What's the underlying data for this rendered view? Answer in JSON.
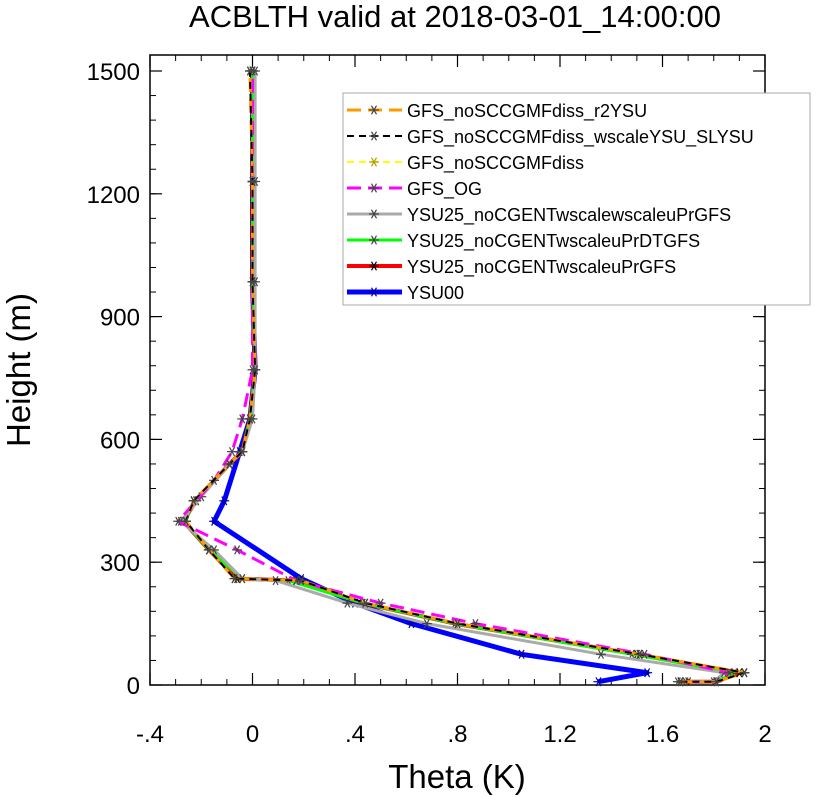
{
  "chart_data": {
    "type": "line",
    "title": "ACBLTH valid at 2018-03-01_14:00:00",
    "xlabel": "Theta (K)",
    "ylabel": "Height (m)",
    "xlim": [
      -0.4,
      2.0
    ],
    "ylim": [
      0,
      1500
    ],
    "x_ticks": [
      -0.4,
      0,
      0.4,
      0.8,
      1.2,
      1.6,
      2.0
    ],
    "x_tick_labels": [
      "-.4",
      "0",
      ".4",
      ".8",
      "1.2",
      "1.6",
      "2"
    ],
    "y_ticks": [
      0,
      300,
      600,
      900,
      1200,
      1500
    ],
    "y_tick_labels": [
      "0",
      "300",
      "600",
      "900",
      "1200",
      "1500"
    ],
    "legend_position": "top-right",
    "grid": false,
    "series": [
      {
        "name": "GFS_noSCCGMFdiss_r2YSU",
        "color": "#ff9900",
        "dash": "long",
        "width": 3,
        "points": [
          [
            1.67,
            8
          ],
          [
            1.81,
            8
          ],
          [
            1.92,
            30
          ],
          [
            1.51,
            75
          ],
          [
            0.8,
            150
          ],
          [
            0.44,
            200
          ],
          [
            0.19,
            255
          ],
          [
            -0.07,
            260
          ],
          [
            -0.17,
            330
          ],
          [
            -0.26,
            400
          ],
          [
            -0.23,
            450
          ],
          [
            -0.09,
            540
          ],
          [
            -0.04,
            570
          ],
          [
            -0.01,
            650
          ],
          [
            0.01,
            770
          ],
          [
            0.0,
            985
          ],
          [
            0.0,
            1230
          ],
          [
            -0.01,
            1500
          ]
        ]
      },
      {
        "name": "GFS_noSCCGMFdiss_wscaleYSU_SLYSU",
        "color": "#000000",
        "dash": "short",
        "width": 2,
        "points": [
          [
            1.67,
            8
          ],
          [
            1.81,
            8
          ],
          [
            1.92,
            30
          ],
          [
            1.51,
            75
          ],
          [
            0.8,
            150
          ],
          [
            0.44,
            200
          ],
          [
            0.19,
            255
          ],
          [
            -0.07,
            260
          ],
          [
            -0.17,
            330
          ],
          [
            -0.26,
            400
          ],
          [
            -0.23,
            450
          ],
          [
            -0.09,
            540
          ],
          [
            -0.04,
            570
          ],
          [
            -0.01,
            650
          ],
          [
            0.01,
            770
          ],
          [
            0.0,
            985
          ],
          [
            0.0,
            1230
          ],
          [
            -0.01,
            1500
          ]
        ]
      },
      {
        "name": "GFS_noSCCGMFdiss",
        "color": "#ffff00",
        "dash": "short",
        "width": 2,
        "points": [
          [
            1.67,
            8
          ],
          [
            1.81,
            8
          ],
          [
            1.92,
            30
          ],
          [
            1.51,
            75
          ],
          [
            0.8,
            150
          ],
          [
            0.44,
            200
          ],
          [
            0.19,
            255
          ],
          [
            -0.07,
            260
          ],
          [
            -0.17,
            330
          ],
          [
            -0.26,
            400
          ],
          [
            -0.23,
            450
          ],
          [
            -0.09,
            540
          ],
          [
            -0.04,
            570
          ],
          [
            -0.01,
            650
          ],
          [
            0.01,
            770
          ],
          [
            0.0,
            985
          ],
          [
            0.0,
            1230
          ],
          [
            -0.01,
            1500
          ]
        ]
      },
      {
        "name": "GFS_OG",
        "color": "#ff00ff",
        "dash": "long",
        "width": 3,
        "points": [
          [
            1.69,
            8
          ],
          [
            1.81,
            8
          ],
          [
            1.86,
            30
          ],
          [
            1.53,
            75
          ],
          [
            0.87,
            150
          ],
          [
            0.5,
            200
          ],
          [
            0.17,
            255
          ],
          [
            -0.06,
            330
          ],
          [
            -0.29,
            400
          ],
          [
            -0.15,
            500
          ],
          [
            -0.08,
            570
          ],
          [
            -0.04,
            650
          ],
          [
            0.0,
            770
          ],
          [
            0.0,
            985
          ],
          [
            0.0,
            1230
          ],
          [
            0.0,
            1500
          ]
        ]
      },
      {
        "name": "YSU25_noCGENTwscalewscaleuPrGFS",
        "color": "#aaaaaa",
        "dash": "solid",
        "width": 3,
        "points": [
          [
            1.7,
            8
          ],
          [
            1.8,
            8
          ],
          [
            1.84,
            30
          ],
          [
            1.36,
            75
          ],
          [
            0.68,
            150
          ],
          [
            0.37,
            200
          ],
          [
            0.09,
            255
          ],
          [
            -0.04,
            260
          ],
          [
            -0.15,
            330
          ],
          [
            -0.28,
            400
          ],
          [
            -0.2,
            460
          ],
          [
            -0.09,
            540
          ],
          [
            -0.04,
            570
          ],
          [
            0.0,
            650
          ],
          [
            0.01,
            770
          ],
          [
            0.01,
            985
          ],
          [
            0.01,
            1230
          ],
          [
            0.01,
            1500
          ]
        ]
      },
      {
        "name": "YSU25_noCGENTwscaleuPrDTGFS",
        "color": "#00ff00",
        "dash": "solid",
        "width": 3,
        "points": [
          [
            1.66,
            8
          ],
          [
            1.81,
            8
          ],
          [
            1.88,
            30
          ],
          [
            1.48,
            75
          ],
          [
            0.79,
            150
          ],
          [
            0.43,
            200
          ],
          [
            0.14,
            255
          ],
          [
            -0.04,
            260
          ],
          [
            -0.17,
            330
          ],
          [
            -0.27,
            400
          ],
          [
            -0.22,
            450
          ],
          [
            -0.09,
            540
          ],
          [
            -0.04,
            570
          ],
          [
            -0.01,
            650
          ],
          [
            0.01,
            770
          ],
          [
            0.0,
            985
          ],
          [
            0.0,
            1230
          ],
          [
            0.0,
            1500
          ]
        ]
      },
      {
        "name": "YSU25_noCGENTwscaleuPrGFS",
        "color": "#ff0000",
        "dash": "solid",
        "width": 4,
        "points": [
          [
            1.67,
            8
          ],
          [
            1.81,
            8
          ],
          [
            1.9,
            30
          ],
          [
            1.5,
            75
          ],
          [
            0.79,
            150
          ],
          [
            0.43,
            200
          ],
          [
            0.17,
            255
          ],
          [
            -0.06,
            260
          ],
          [
            -0.17,
            330
          ],
          [
            -0.27,
            400
          ],
          [
            -0.22,
            450
          ],
          [
            -0.09,
            540
          ],
          [
            -0.04,
            570
          ],
          [
            -0.01,
            650
          ],
          [
            0.01,
            770
          ],
          [
            0.0,
            985
          ],
          [
            0.0,
            1230
          ],
          [
            0.0,
            1500
          ]
        ]
      },
      {
        "name": "YSU00",
        "color": "#0000ff",
        "dash": "solid",
        "width": 5,
        "points": [
          [
            1.35,
            8
          ],
          [
            1.54,
            30
          ],
          [
            1.05,
            75
          ],
          [
            0.62,
            150
          ],
          [
            0.4,
            200
          ],
          [
            0.19,
            260
          ],
          [
            -0.15,
            400
          ],
          [
            -0.11,
            450
          ],
          [
            -0.05,
            570
          ],
          [
            -0.01,
            650
          ],
          [
            0.01,
            770
          ],
          [
            0.0,
            985
          ],
          [
            0.0,
            1230
          ],
          [
            0.0,
            1500
          ]
        ]
      }
    ]
  }
}
